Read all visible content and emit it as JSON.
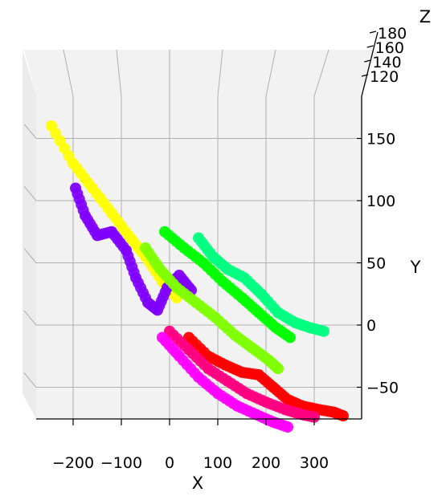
{
  "chart_data": {
    "type": "scatter",
    "projection": "3d",
    "title": "",
    "xlabel": "X",
    "ylabel": "Y",
    "zlabel": "Z",
    "x_ticks": [
      "−200",
      "−100",
      "0",
      "100",
      "200",
      "300"
    ],
    "y_ticks": [
      "−50",
      "0",
      "50",
      "100",
      "150"
    ],
    "z_ticks": [
      "120",
      "140",
      "160",
      "180"
    ],
    "xlim": [
      -260,
      370
    ],
    "ylim": [
      -80,
      170
    ],
    "zlim": [
      115,
      185
    ],
    "grid": true,
    "legend": "none",
    "series": [
      {
        "color": "#ffff00",
        "points": [
          [
            -245,
            160
          ],
          [
            -200,
            130
          ],
          [
            -160,
            110
          ],
          [
            -120,
            90
          ],
          [
            -85,
            72
          ],
          [
            -50,
            55
          ],
          [
            -15,
            35
          ],
          [
            15,
            22
          ]
        ]
      },
      {
        "color": "#7f00ff",
        "points": [
          [
            -195,
            110
          ],
          [
            -175,
            88
          ],
          [
            -150,
            72
          ],
          [
            -120,
            75
          ],
          [
            -90,
            60
          ],
          [
            -70,
            38
          ],
          [
            -45,
            18
          ],
          [
            -25,
            12
          ],
          [
            -5,
            30
          ],
          [
            20,
            40
          ],
          [
            45,
            28
          ]
        ]
      },
      {
        "color": "#00ff80",
        "points": [
          [
            60,
            70
          ],
          [
            90,
            55
          ],
          [
            120,
            45
          ],
          [
            155,
            38
          ],
          [
            190,
            25
          ],
          [
            225,
            10
          ],
          [
            260,
            2
          ],
          [
            290,
            -2
          ],
          [
            320,
            -5
          ]
        ]
      },
      {
        "color": "#00ff00",
        "points": [
          [
            -10,
            75
          ],
          [
            30,
            62
          ],
          [
            70,
            50
          ],
          [
            110,
            35
          ],
          [
            150,
            22
          ],
          [
            185,
            10
          ],
          [
            220,
            -2
          ],
          [
            250,
            -10
          ]
        ]
      },
      {
        "color": "#80ff00",
        "points": [
          [
            -50,
            62
          ],
          [
            -20,
            45
          ],
          [
            15,
            30
          ],
          [
            55,
            18
          ],
          [
            95,
            6
          ],
          [
            135,
            -8
          ],
          [
            170,
            -18
          ],
          [
            205,
            -28
          ],
          [
            225,
            -35
          ]
        ]
      },
      {
        "color": "#ff0000",
        "points": [
          [
            40,
            -10
          ],
          [
            80,
            -25
          ],
          [
            115,
            -32
          ],
          [
            150,
            -38
          ],
          [
            185,
            -40
          ],
          [
            215,
            -50
          ],
          [
            245,
            -60
          ],
          [
            275,
            -65
          ],
          [
            310,
            -68
          ],
          [
            340,
            -70
          ],
          [
            360,
            -73
          ]
        ]
      },
      {
        "color": "#ff0080",
        "points": [
          [
            0,
            -5
          ],
          [
            40,
            -20
          ],
          [
            80,
            -35
          ],
          [
            120,
            -45
          ],
          [
            160,
            -55
          ],
          [
            200,
            -62
          ],
          [
            240,
            -68
          ],
          [
            275,
            -72
          ],
          [
            300,
            -74
          ]
        ]
      },
      {
        "color": "#ff00ff",
        "points": [
          [
            -15,
            -10
          ],
          [
            20,
            -25
          ],
          [
            60,
            -42
          ],
          [
            100,
            -55
          ],
          [
            140,
            -65
          ],
          [
            180,
            -72
          ],
          [
            215,
            -78
          ],
          [
            245,
            -82
          ]
        ]
      }
    ]
  }
}
